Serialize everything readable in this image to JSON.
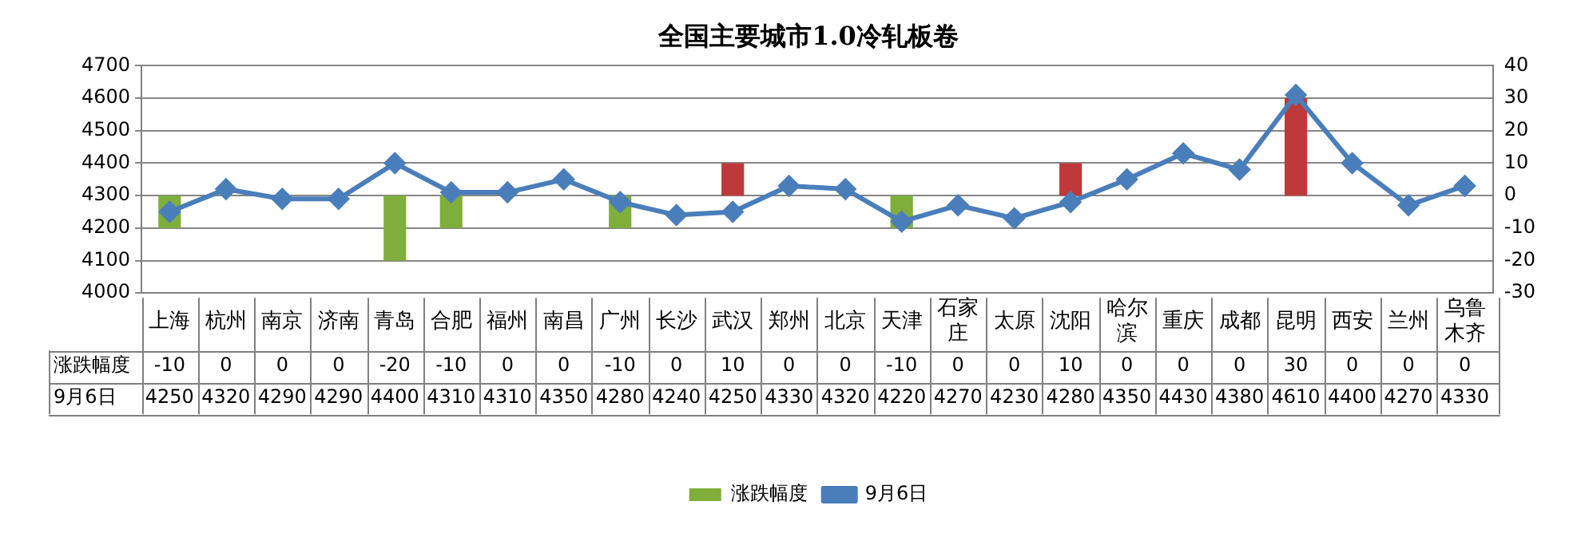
{
  "chart_data": {
    "type": "bar",
    "title": "全国主要城市1.0冷轧板卷",
    "categories": [
      "上海",
      "杭州",
      "南京",
      "济南",
      "青岛",
      "合肥",
      "福州",
      "南昌",
      "广州",
      "长沙",
      "武汉",
      "郑州",
      "北京",
      "天津",
      "石家庄",
      "太原",
      "沈阳",
      "哈尔滨",
      "重庆",
      "成都",
      "昆明",
      "西安",
      "兰州",
      "乌鲁木齐"
    ],
    "series": [
      {
        "name": "涨跌幅度",
        "axis": "y2",
        "colors": [
          "#7fae3a",
          "#7fae3a",
          "#7fae3a",
          "#7fae3a",
          "#7fae3a",
          "#7fae3a",
          "#7fae3a",
          "#7fae3a",
          "#7fae3a",
          "#7fae3a",
          "#c0393a",
          "#7fae3a",
          "#7fae3a",
          "#7fae3a",
          "#7fae3a",
          "#7fae3a",
          "#c0393a",
          "#7fae3a",
          "#7fae3a",
          "#7fae3a",
          "#c0393a",
          "#7fae3a",
          "#7fae3a",
          "#7fae3a"
        ],
        "values": [
          -10,
          0,
          0,
          0,
          -20,
          -10,
          0,
          0,
          -10,
          0,
          10,
          0,
          0,
          -10,
          0,
          0,
          10,
          0,
          0,
          0,
          30,
          0,
          0,
          0
        ]
      },
      {
        "name": "9月6日",
        "type": "line",
        "axis": "y",
        "color": "#4a7ebb",
        "values": [
          4250,
          4320,
          4290,
          4290,
          4400,
          4310,
          4310,
          4350,
          4280,
          4240,
          4250,
          4330,
          4320,
          4220,
          4270,
          4230,
          4280,
          4350,
          4430,
          4380,
          4610,
          4400,
          4270,
          4330
        ]
      }
    ],
    "ylim": [
      4000,
      4700
    ],
    "yticks": [
      4000,
      4100,
      4200,
      4300,
      4400,
      4500,
      4600,
      4700
    ],
    "y2lim": [
      -30,
      40
    ],
    "y2ticks": [
      -30,
      -20,
      -10,
      0,
      10,
      20,
      30,
      40
    ],
    "grid": "y",
    "legend": "bottom",
    "marker": "diamond",
    "data_labels": true
  }
}
